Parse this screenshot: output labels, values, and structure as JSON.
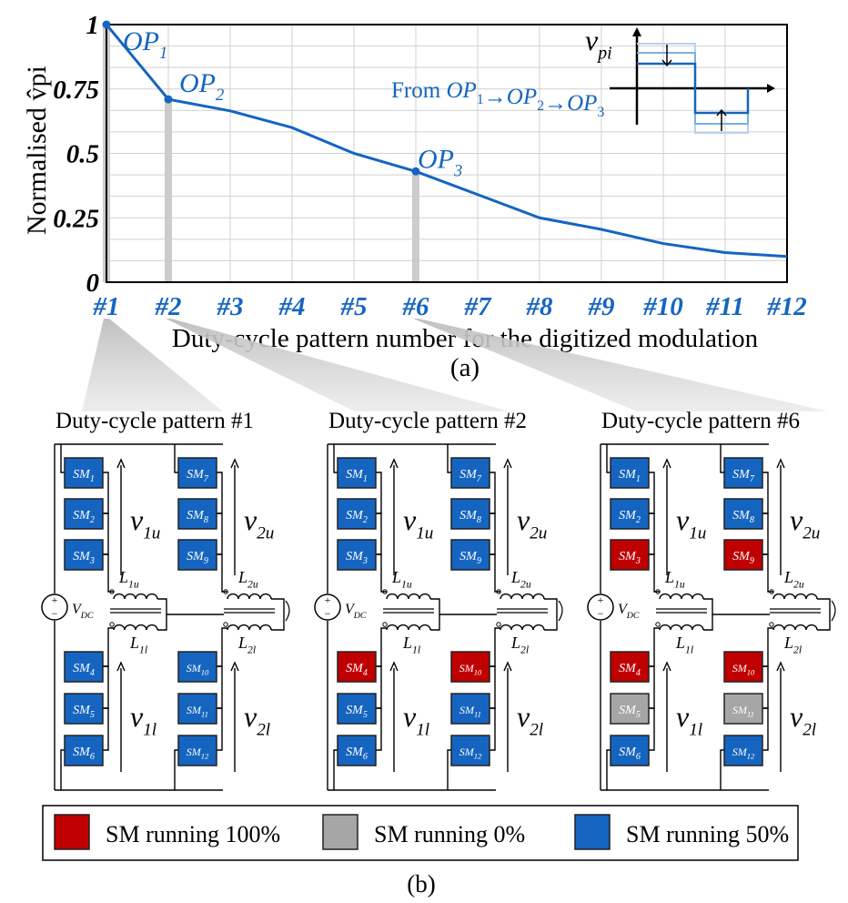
{
  "colors": {
    "series": "#1565c0",
    "sm_full": "#c00000",
    "sm_zero": "#a6a6a6",
    "sm_half": "#1565c0",
    "grid": "#d0d0d0",
    "highlight": "#cccccc"
  },
  "chart_data": {
    "type": "line",
    "ylabel": "Normalised v̂pi",
    "xlabel": "Duty-cycle pattern number for the digitized modulation",
    "categories": [
      "#1",
      "#2",
      "#3",
      "#4",
      "#5",
      "#6",
      "#7",
      "#8",
      "#9",
      "#10",
      "#11",
      "#12"
    ],
    "values": [
      1.0,
      0.71,
      0.665,
      0.6,
      0.5,
      0.43,
      0.34,
      0.25,
      0.205,
      0.15,
      0.115,
      0.1
    ],
    "ylim": [
      0,
      1
    ],
    "yticks": [
      "0",
      "0.25",
      "0.5",
      "0.75",
      "1"
    ],
    "grid": true,
    "operating_points": [
      {
        "label": "OP",
        "sub": "1",
        "index": 0
      },
      {
        "label": "OP",
        "sub": "2",
        "index": 1
      },
      {
        "label": "OP",
        "sub": "3",
        "index": 5
      }
    ],
    "inset": {
      "axis_label": "v",
      "axis_sub": "pi",
      "caption_prefix": "From ",
      "caption_seq": [
        "OP",
        "1",
        "→",
        "OP",
        "2",
        "→",
        "OP",
        "3"
      ]
    }
  },
  "labels": {
    "caption_a": "(a)",
    "caption_b": "(b)"
  },
  "circuits": [
    {
      "title": "Duty-cycle pattern #1",
      "upper_left": [
        {
          "n": "1",
          "s": "half"
        },
        {
          "n": "2",
          "s": "half"
        },
        {
          "n": "3",
          "s": "half"
        }
      ],
      "upper_right": [
        {
          "n": "7",
          "s": "half"
        },
        {
          "n": "8",
          "s": "half"
        },
        {
          "n": "9",
          "s": "half"
        }
      ],
      "lower_left": [
        {
          "n": "4",
          "s": "half"
        },
        {
          "n": "5",
          "s": "half"
        },
        {
          "n": "6",
          "s": "half"
        }
      ],
      "lower_right": [
        {
          "n": "10",
          "s": "half"
        },
        {
          "n": "11",
          "s": "half"
        },
        {
          "n": "12",
          "s": "half"
        }
      ]
    },
    {
      "title": "Duty-cycle pattern #2",
      "upper_left": [
        {
          "n": "1",
          "s": "half"
        },
        {
          "n": "2",
          "s": "half"
        },
        {
          "n": "3",
          "s": "half"
        }
      ],
      "upper_right": [
        {
          "n": "7",
          "s": "half"
        },
        {
          "n": "8",
          "s": "half"
        },
        {
          "n": "9",
          "s": "half"
        }
      ],
      "lower_left": [
        {
          "n": "4",
          "s": "full"
        },
        {
          "n": "5",
          "s": "half"
        },
        {
          "n": "6",
          "s": "half"
        }
      ],
      "lower_right": [
        {
          "n": "10",
          "s": "full"
        },
        {
          "n": "11",
          "s": "half"
        },
        {
          "n": "12",
          "s": "half"
        }
      ]
    },
    {
      "title": "Duty-cycle pattern #6",
      "upper_left": [
        {
          "n": "1",
          "s": "half"
        },
        {
          "n": "2",
          "s": "half"
        },
        {
          "n": "3",
          "s": "full"
        }
      ],
      "upper_right": [
        {
          "n": "7",
          "s": "half"
        },
        {
          "n": "8",
          "s": "half"
        },
        {
          "n": "9",
          "s": "full"
        }
      ],
      "lower_left": [
        {
          "n": "4",
          "s": "full"
        },
        {
          "n": "5",
          "s": "zero"
        },
        {
          "n": "6",
          "s": "half"
        }
      ],
      "lower_right": [
        {
          "n": "10",
          "s": "full"
        },
        {
          "n": "11",
          "s": "zero"
        },
        {
          "n": "12",
          "s": "half"
        }
      ]
    }
  ],
  "circuit_labels": {
    "sm": "SM",
    "v": "v",
    "v1u": "1u",
    "v2u": "2u",
    "v1l": "1l",
    "v2l": "2l",
    "L": "L",
    "L1u": "1u",
    "L2u": "2u",
    "L1l": "1l",
    "L2l": "2l",
    "vdc": "V",
    "vdc_sub": "DC",
    "plus": "+",
    "minus": "−"
  },
  "legend": [
    {
      "state": "full",
      "label": "SM running 100%"
    },
    {
      "state": "zero",
      "label": "SM running 0%"
    },
    {
      "state": "half",
      "label": "SM running 50%"
    }
  ]
}
